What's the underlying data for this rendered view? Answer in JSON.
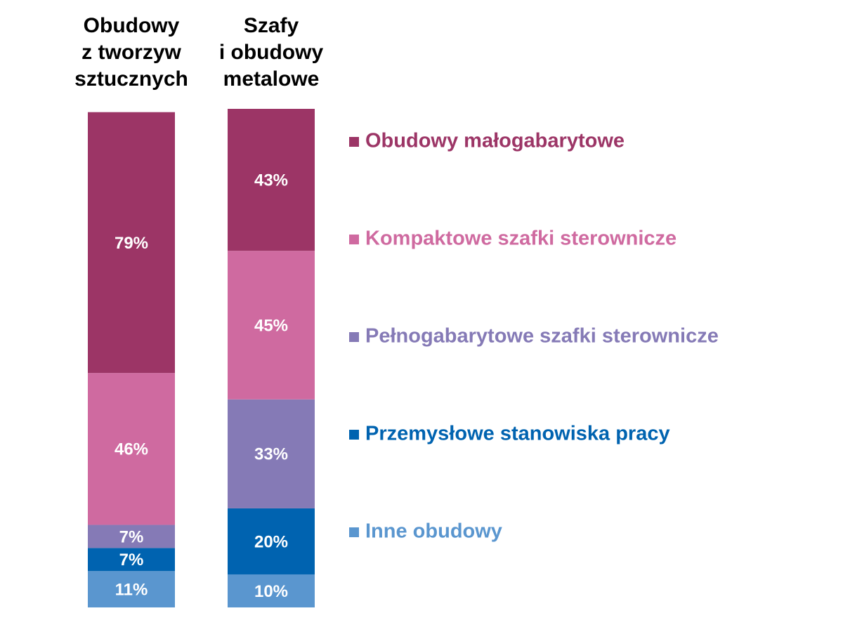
{
  "chart_data": {
    "type": "stacked_bar",
    "categories": [
      "Obudowy\nz tworzyw\nsztucznych",
      "Szafy\ni obudowy\nmetalowe"
    ],
    "series": [
      {
        "name": "Obudowy małogabarytowe",
        "color": "#9c3566",
        "values": [
          79,
          43
        ],
        "value_labels": [
          "79%",
          "43%"
        ]
      },
      {
        "name": "Kompaktowe szafki sterownicze",
        "color": "#cf6aa0",
        "values": [
          46,
          45
        ],
        "value_labels": [
          "46%",
          "45%"
        ]
      },
      {
        "name": "Pełnogabarytowe szafki sterownicze",
        "color": "#857ab6",
        "values": [
          7,
          33
        ],
        "value_labels": [
          "7%",
          "33%"
        ]
      },
      {
        "name": "Przemysłowe stanowiska pracy",
        "color": "#0063b0",
        "values": [
          7,
          20
        ],
        "value_labels": [
          "7%",
          "20%"
        ]
      },
      {
        "name": "Inne obudowy",
        "color": "#5a96cf",
        "values": [
          11,
          10
        ],
        "value_labels": [
          "11%",
          "10%"
        ]
      }
    ],
    "legend": "right"
  }
}
